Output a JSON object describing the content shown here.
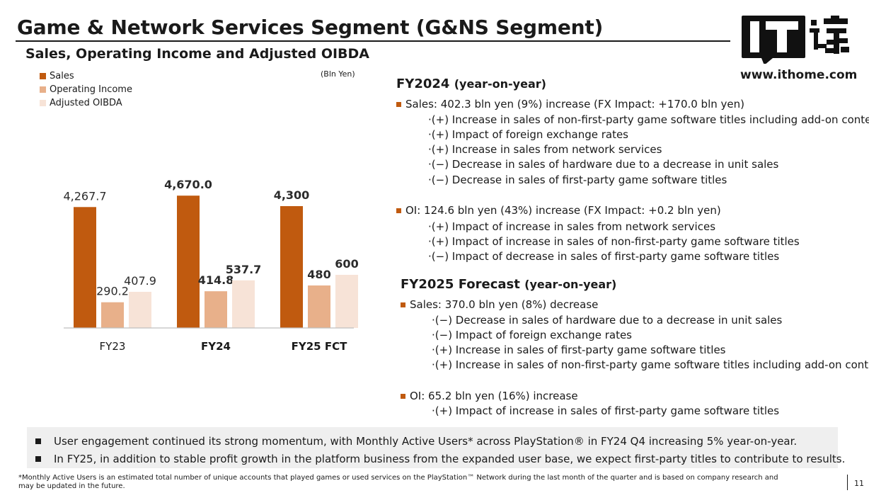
{
  "title": "Game & Network Services Segment (G&NS Segment)",
  "subtitle": "Sales, Operating Income and Adjusted OIBDA",
  "logo": {
    "url_text": "www.ithome.com"
  },
  "chart_data": {
    "type": "bar",
    "unit": "(Bln Yen)",
    "categories": [
      "FY23",
      "FY24",
      "FY25 FCT"
    ],
    "series": [
      {
        "name": "Sales",
        "color": "#c05a0f",
        "values": [
          4267.7,
          4670.0,
          4300
        ],
        "labels": [
          "4,267.7",
          "4,670.0",
          "4,300"
        ]
      },
      {
        "name": "Operating Income",
        "color": "#e8b08a",
        "values": [
          290.2,
          414.8,
          480
        ],
        "labels": [
          "290.2",
          "414.8",
          "480"
        ]
      },
      {
        "name": "Adjusted OIBDA",
        "color": "#f7e3d7",
        "values": [
          407.9,
          537.7,
          600
        ],
        "labels": [
          "407.9",
          "537.7",
          "600"
        ]
      }
    ]
  },
  "fy2024": {
    "title": "FY2024",
    "yoy": "(year-on-year)",
    "sales_line": "Sales: 402.3 bln yen (9%) increase (FX Impact: +170.0 bln yen)",
    "sales_items": [
      "·(+) Increase in sales of non-first-party game software titles including add-on content",
      "·(+) Impact of foreign exchange rates",
      "·(+) Increase in sales from network services",
      "·(−) Decrease in sales of hardware due to a decrease in unit sales",
      "·(−) Decrease in sales of first-party game software titles"
    ],
    "oi_line": "OI: 124.6 bln yen (43%) increase (FX Impact: +0.2 bln yen)",
    "oi_items": [
      "·(+) Impact of increase in sales from network services",
      "·(+) Impact of increase in sales of non-first-party game software titles",
      "·(−) Impact of decrease in sales of first-party game software titles"
    ]
  },
  "fy2025": {
    "title": "FY2025 Forecast",
    "yoy": "(year-on-year)",
    "sales_line": "Sales: 370.0 bln yen (8%) decrease",
    "sales_items": [
      "·(−) Decrease in sales of hardware due to a decrease in unit sales",
      "·(−) Impact of foreign exchange rates",
      "·(+) Increase in sales of first-party game software titles",
      "·(+) Increase in sales of non-first-party game software titles including add-on content"
    ],
    "oi_line": "OI: 65.2 bln yen  (16%) increase",
    "oi_items": [
      "·(+) Impact of increase in sales of first-party game software titles"
    ]
  },
  "notes": [
    "User engagement continued its strong momentum, with Monthly Active Users* across PlayStation® in FY24 Q4 increasing 5% year-on-year.",
    "In FY25, in addition to stable profit growth in the platform business from the expanded user base, we expect first-party titles to contribute to results."
  ],
  "footnote": "*Monthly Active Users is an estimated total number of unique accounts that played games or used services on the PlayStation™ Network during the last month of the quarter and is based on company research and may be updated in the future.",
  "page_number": "11"
}
